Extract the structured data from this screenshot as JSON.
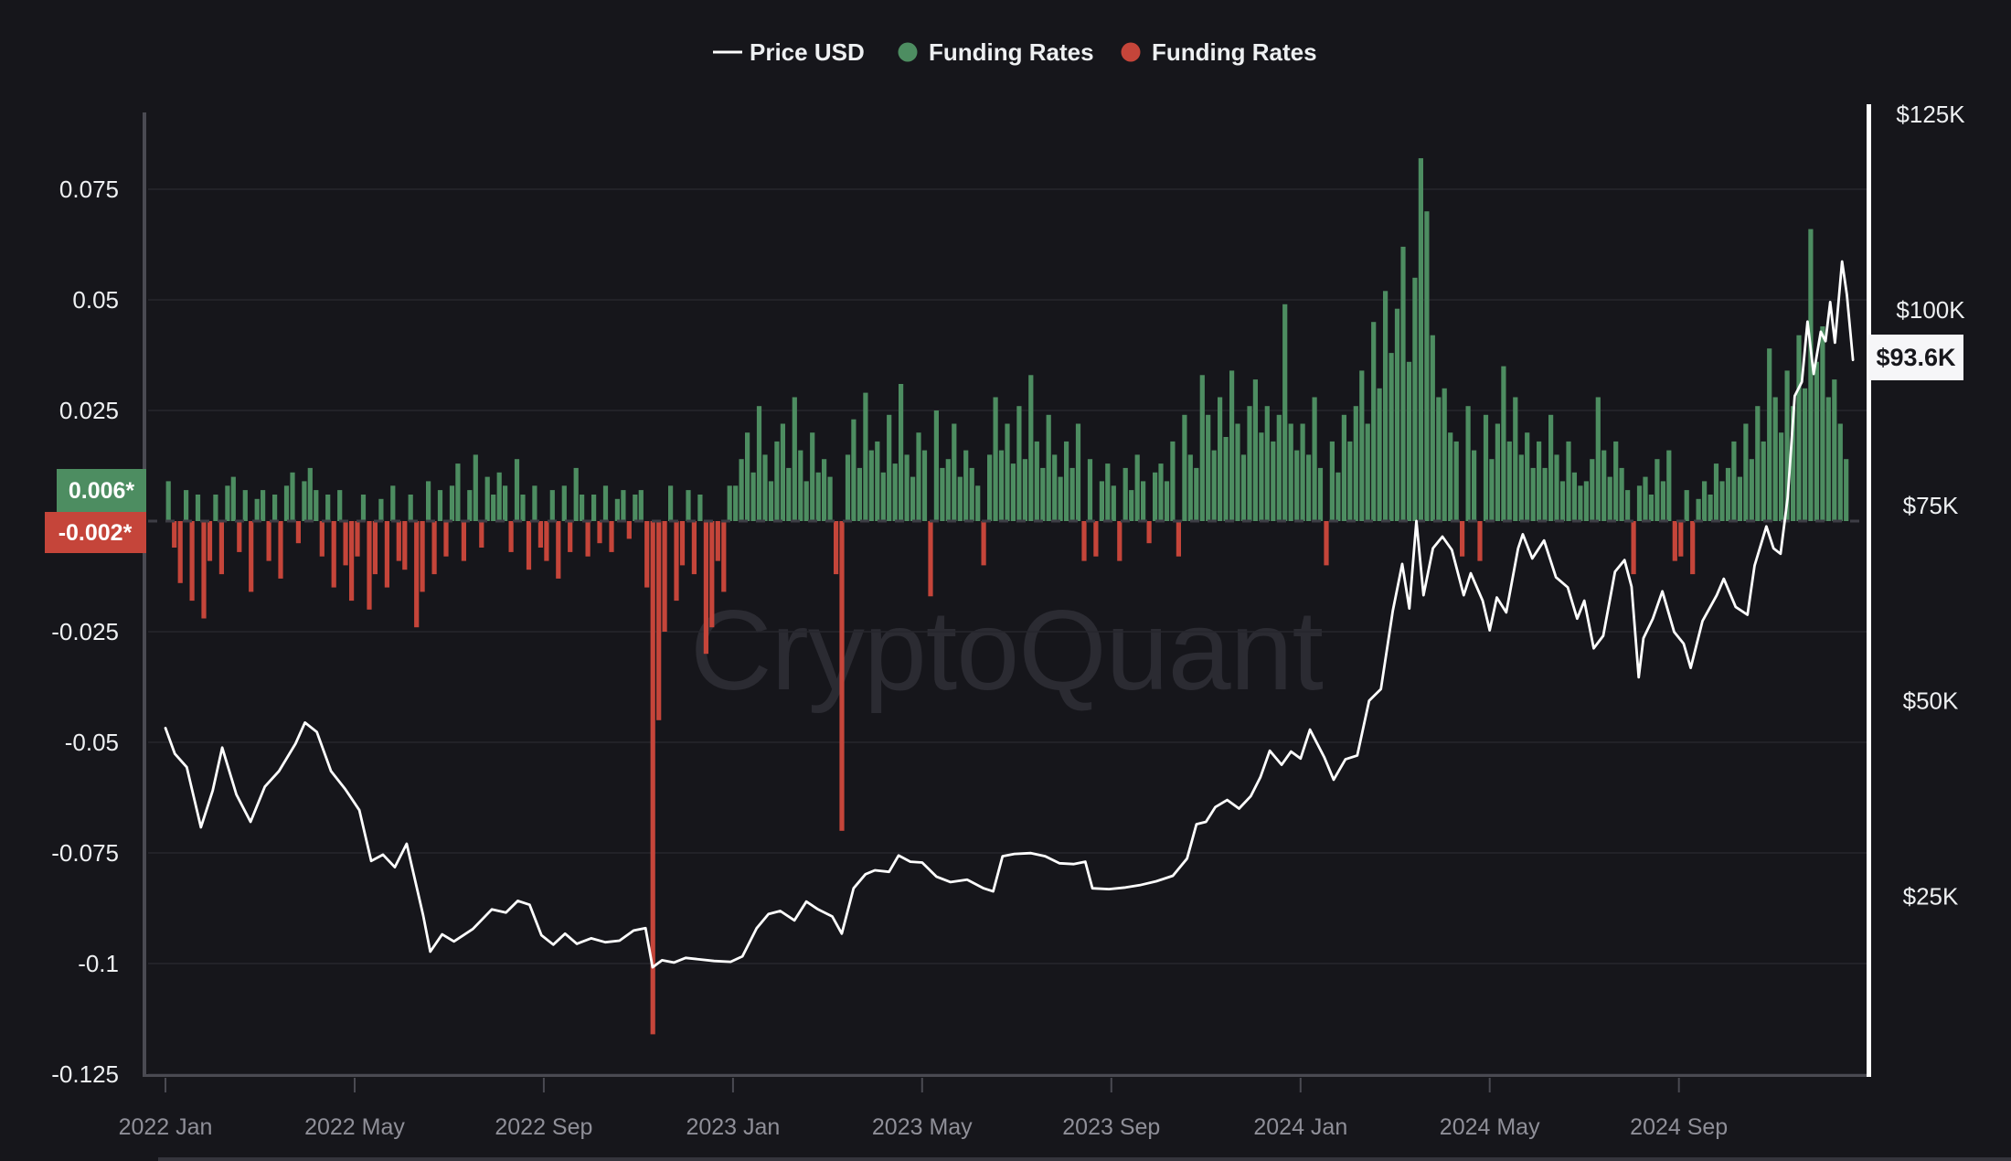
{
  "legend": {
    "items": [
      {
        "label": "Price USD",
        "marker": "line",
        "color": "#ffffff"
      },
      {
        "label": "Funding Rates",
        "marker": "dot",
        "color": "#4d8d61"
      },
      {
        "label": "Funding Rates",
        "marker": "dot",
        "color": "#c5453a"
      }
    ]
  },
  "watermark": "CryptoQuant",
  "badges": {
    "funding_green": "0.006*",
    "funding_red": "-0.002*",
    "price_current": "$93.6K"
  },
  "colors": {
    "bg": "#16161b",
    "grid": "#26262c",
    "axisGray": "#4a4a52",
    "tickLabel": "#8f8f98",
    "axisLabel": "#eef0f2",
    "green": "#4d8d61",
    "red": "#c5453a",
    "priceLine": "#ffffff",
    "watermark": "#2b2b32",
    "priceBadgeBg": "#f6f6f8",
    "priceBadgeText": "#17171c",
    "zeroDash": "#3d3d45",
    "bottomStrip": "#35353d"
  },
  "axes": {
    "left": {
      "ticks": [
        {
          "v": 0.075,
          "label": "0.075"
        },
        {
          "v": 0.05,
          "label": "0.05"
        },
        {
          "v": 0.025,
          "label": "0.025"
        },
        {
          "v": -0.025,
          "label": "-0.025"
        },
        {
          "v": -0.05,
          "label": "-0.05"
        },
        {
          "v": -0.075,
          "label": "-0.075"
        },
        {
          "v": -0.1,
          "label": "-0.1"
        },
        {
          "v": -0.125,
          "label": "-0.125"
        }
      ]
    },
    "right": {
      "ticks": [
        {
          "v": 125,
          "label": "$125K"
        },
        {
          "v": 100,
          "label": "$100K"
        },
        {
          "v": 75,
          "label": "$75K"
        },
        {
          "v": 50,
          "label": "$50K"
        },
        {
          "v": 25,
          "label": "$25K"
        }
      ]
    },
    "x": {
      "ticks": [
        {
          "m": 0,
          "label": "2022 Jan"
        },
        {
          "m": 4,
          "label": "2022 May"
        },
        {
          "m": 8,
          "label": "2022 Sep"
        },
        {
          "m": 12,
          "label": "2023 Jan"
        },
        {
          "m": 16,
          "label": "2023 May"
        },
        {
          "m": 20,
          "label": "2023 Sep"
        },
        {
          "m": 24,
          "label": "2024 Jan"
        },
        {
          "m": 28,
          "label": "2024 May"
        },
        {
          "m": 32,
          "label": "2024 Sep"
        }
      ]
    }
  },
  "chart_data": {
    "type": [
      "line",
      "bar"
    ],
    "x_range_months": [
      "2022-01",
      "2024-12"
    ],
    "left_ylim": [
      -0.125,
      0.092
    ],
    "right_ylim_usd_k": [
      0,
      125
    ],
    "grid": "horizontal",
    "legend_position": "top-center",
    "last_values": {
      "price_usd_k": 93.6,
      "funding_green": 0.006,
      "funding_red": -0.002
    },
    "series": [
      {
        "name": "Price USD",
        "type": "line",
        "axis": "right",
        "unit": "USD thousands",
        "points_month_price_k": [
          [
            0,
            46.5
          ],
          [
            0.2,
            43.2
          ],
          [
            0.45,
            41.5
          ],
          [
            0.75,
            33.8
          ],
          [
            1.0,
            38.5
          ],
          [
            1.2,
            44.0
          ],
          [
            1.5,
            38.0
          ],
          [
            1.8,
            34.5
          ],
          [
            2.1,
            39.0
          ],
          [
            2.4,
            41.0
          ],
          [
            2.75,
            44.5
          ],
          [
            2.95,
            47.2
          ],
          [
            3.2,
            46.0
          ],
          [
            3.5,
            41.0
          ],
          [
            3.8,
            38.7
          ],
          [
            4.1,
            36.0
          ],
          [
            4.35,
            29.5
          ],
          [
            4.6,
            30.3
          ],
          [
            4.85,
            28.7
          ],
          [
            5.1,
            31.7
          ],
          [
            5.45,
            22.5
          ],
          [
            5.6,
            17.9
          ],
          [
            5.85,
            20.1
          ],
          [
            6.1,
            19.2
          ],
          [
            6.5,
            20.8
          ],
          [
            6.9,
            23.3
          ],
          [
            7.2,
            22.9
          ],
          [
            7.45,
            24.4
          ],
          [
            7.7,
            23.9
          ],
          [
            7.95,
            20.0
          ],
          [
            8.2,
            18.8
          ],
          [
            8.45,
            20.2
          ],
          [
            8.7,
            18.9
          ],
          [
            9.0,
            19.6
          ],
          [
            9.3,
            19.1
          ],
          [
            9.6,
            19.3
          ],
          [
            9.9,
            20.6
          ],
          [
            10.15,
            20.9
          ],
          [
            10.3,
            15.9
          ],
          [
            10.5,
            16.8
          ],
          [
            10.75,
            16.5
          ],
          [
            11.0,
            17.1
          ],
          [
            11.3,
            16.9
          ],
          [
            11.6,
            16.7
          ],
          [
            11.95,
            16.6
          ],
          [
            12.2,
            17.3
          ],
          [
            12.5,
            20.9
          ],
          [
            12.75,
            22.7
          ],
          [
            13.0,
            23.1
          ],
          [
            13.3,
            21.9
          ],
          [
            13.55,
            24.3
          ],
          [
            13.8,
            23.3
          ],
          [
            14.1,
            22.4
          ],
          [
            14.3,
            20.2
          ],
          [
            14.55,
            26.0
          ],
          [
            14.8,
            27.8
          ],
          [
            15.0,
            28.3
          ],
          [
            15.3,
            28.1
          ],
          [
            15.5,
            30.2
          ],
          [
            15.75,
            29.4
          ],
          [
            16.0,
            29.3
          ],
          [
            16.3,
            27.5
          ],
          [
            16.6,
            26.8
          ],
          [
            16.95,
            27.1
          ],
          [
            17.3,
            26.0
          ],
          [
            17.5,
            25.6
          ],
          [
            17.7,
            30.1
          ],
          [
            17.95,
            30.4
          ],
          [
            18.3,
            30.5
          ],
          [
            18.6,
            30.1
          ],
          [
            18.9,
            29.2
          ],
          [
            19.2,
            29.1
          ],
          [
            19.45,
            29.4
          ],
          [
            19.6,
            26.0
          ],
          [
            19.95,
            25.9
          ],
          [
            20.3,
            26.1
          ],
          [
            20.6,
            26.4
          ],
          [
            20.95,
            26.9
          ],
          [
            21.3,
            27.6
          ],
          [
            21.6,
            29.8
          ],
          [
            21.8,
            34.2
          ],
          [
            22.0,
            34.5
          ],
          [
            22.2,
            36.4
          ],
          [
            22.45,
            37.3
          ],
          [
            22.7,
            36.2
          ],
          [
            22.95,
            37.8
          ],
          [
            23.15,
            40.2
          ],
          [
            23.35,
            43.6
          ],
          [
            23.6,
            41.8
          ],
          [
            23.8,
            43.5
          ],
          [
            24.0,
            42.6
          ],
          [
            24.2,
            46.3
          ],
          [
            24.5,
            42.8
          ],
          [
            24.7,
            39.9
          ],
          [
            24.95,
            42.5
          ],
          [
            25.2,
            43.0
          ],
          [
            25.45,
            50.0
          ],
          [
            25.7,
            51.5
          ],
          [
            25.95,
            61.5
          ],
          [
            26.15,
            67.5
          ],
          [
            26.3,
            61.8
          ],
          [
            26.45,
            73.0
          ],
          [
            26.6,
            63.5
          ],
          [
            26.8,
            69.5
          ],
          [
            27.0,
            71.0
          ],
          [
            27.2,
            69.3
          ],
          [
            27.45,
            63.5
          ],
          [
            27.6,
            66.3
          ],
          [
            27.85,
            62.8
          ],
          [
            28.0,
            59.0
          ],
          [
            28.15,
            63.2
          ],
          [
            28.35,
            61.3
          ],
          [
            28.6,
            69.5
          ],
          [
            28.7,
            71.3
          ],
          [
            28.9,
            68.2
          ],
          [
            29.15,
            70.5
          ],
          [
            29.4,
            65.8
          ],
          [
            29.65,
            64.5
          ],
          [
            29.85,
            60.5
          ],
          [
            30.0,
            62.8
          ],
          [
            30.2,
            56.7
          ],
          [
            30.4,
            58.3
          ],
          [
            30.65,
            66.5
          ],
          [
            30.85,
            68.0
          ],
          [
            31.0,
            64.6
          ],
          [
            31.15,
            53.0
          ],
          [
            31.25,
            58.0
          ],
          [
            31.45,
            60.5
          ],
          [
            31.65,
            64.0
          ],
          [
            31.9,
            58.8
          ],
          [
            32.1,
            57.3
          ],
          [
            32.25,
            54.2
          ],
          [
            32.5,
            60.2
          ],
          [
            32.8,
            63.5
          ],
          [
            32.95,
            65.6
          ],
          [
            33.2,
            62.0
          ],
          [
            33.45,
            61.0
          ],
          [
            33.6,
            67.3
          ],
          [
            33.85,
            72.3
          ],
          [
            34.0,
            69.5
          ],
          [
            34.15,
            68.8
          ],
          [
            34.3,
            76.0
          ],
          [
            34.45,
            89.0
          ],
          [
            34.6,
            90.8
          ],
          [
            34.72,
            98.5
          ],
          [
            34.85,
            91.8
          ],
          [
            35.0,
            97.2
          ],
          [
            35.1,
            96.0
          ],
          [
            35.2,
            101.0
          ],
          [
            35.3,
            95.8
          ],
          [
            35.45,
            106.2
          ],
          [
            35.55,
            102.0
          ],
          [
            35.62,
            97.5
          ],
          [
            35.68,
            93.6
          ]
        ]
      },
      {
        "name": "Funding Rates",
        "type": "bar",
        "axis": "left",
        "values_scale": 0.01,
        "start_month": 0,
        "months_per_bar": 0.125,
        "values": [
          0.9,
          -0.6,
          -1.4,
          0.7,
          -1.8,
          0.6,
          -2.2,
          -0.9,
          0.6,
          -1.2,
          0.8,
          1.0,
          -0.7,
          0.7,
          -1.6,
          0.5,
          0.7,
          -0.9,
          0.6,
          -1.3,
          0.8,
          1.1,
          -0.5,
          0.9,
          1.2,
          0.7,
          -0.8,
          0.6,
          -1.5,
          0.7,
          -1.0,
          -1.8,
          -0.8,
          0.6,
          -2.0,
          -1.2,
          0.5,
          -1.5,
          0.8,
          -0.9,
          -1.1,
          0.6,
          -2.4,
          -1.6,
          0.9,
          -1.2,
          0.7,
          -0.8,
          0.8,
          1.3,
          -0.9,
          0.7,
          1.5,
          -0.6,
          1.0,
          0.6,
          1.1,
          0.8,
          -0.7,
          1.4,
          0.6,
          -1.1,
          0.8,
          -0.6,
          -0.9,
          0.7,
          -1.3,
          0.8,
          -0.7,
          1.2,
          0.6,
          -0.8,
          0.6,
          -0.5,
          0.8,
          -0.7,
          0.5,
          0.7,
          -0.4,
          0.6,
          0.7,
          -1.5,
          -11.6,
          -4.5,
          -2.5,
          0.8,
          -1.8,
          -1.0,
          0.7,
          -1.2,
          0.6,
          -3.0,
          -2.4,
          -0.9,
          -1.6,
          0.8,
          0.8,
          1.4,
          2.0,
          1.1,
          2.6,
          1.5,
          0.9,
          1.8,
          2.2,
          1.2,
          2.8,
          1.6,
          0.9,
          2.0,
          1.1,
          1.4,
          1.0,
          -1.2,
          -7.0,
          1.5,
          2.3,
          1.2,
          2.9,
          1.6,
          1.8,
          1.1,
          2.4,
          1.3,
          3.1,
          1.5,
          1.0,
          2.0,
          1.6,
          -1.7,
          2.5,
          1.2,
          1.4,
          2.2,
          1.0,
          1.6,
          1.2,
          0.8,
          -1.0,
          1.5,
          2.8,
          1.6,
          2.2,
          1.3,
          2.6,
          1.4,
          3.3,
          1.8,
          1.2,
          2.4,
          1.5,
          1.0,
          1.8,
          1.2,
          2.2,
          -0.9,
          1.4,
          -0.8,
          0.9,
          1.3,
          0.8,
          -0.9,
          1.2,
          0.7,
          1.5,
          0.9,
          -0.5,
          1.1,
          1.3,
          0.9,
          1.8,
          -0.8,
          2.4,
          1.5,
          1.2,
          3.3,
          2.4,
          1.6,
          2.8,
          1.9,
          3.4,
          2.2,
          1.5,
          2.6,
          3.2,
          2.0,
          2.6,
          1.8,
          2.4,
          4.9,
          2.2,
          1.6,
          2.2,
          1.5,
          2.8,
          1.2,
          -1.0,
          1.8,
          1.1,
          2.4,
          1.8,
          2.6,
          3.4,
          2.2,
          4.5,
          3.0,
          5.2,
          3.8,
          4.8,
          6.2,
          3.6,
          5.5,
          8.2,
          7.0,
          4.2,
          2.8,
          3.0,
          2.0,
          1.8,
          -0.8,
          2.6,
          1.6,
          -0.9,
          2.4,
          1.4,
          2.2,
          3.5,
          1.8,
          2.8,
          1.5,
          2.0,
          1.2,
          1.8,
          1.2,
          2.4,
          1.5,
          0.9,
          1.8,
          1.1,
          0.8,
          0.9,
          1.4,
          2.8,
          1.6,
          1.0,
          1.8,
          1.2,
          0.7,
          -1.2,
          0.8,
          1.0,
          0.6,
          1.4,
          0.9,
          1.6,
          -0.9,
          -0.8,
          0.7,
          -1.2,
          0.5,
          0.9,
          0.6,
          1.3,
          0.9,
          1.2,
          1.8,
          1.0,
          2.2,
          1.4,
          2.6,
          1.8,
          3.9,
          2.8,
          2.0,
          3.4,
          2.6,
          4.2,
          3.0,
          6.6,
          3.6,
          4.4,
          2.8,
          3.2,
          2.2,
          1.4
        ]
      }
    ]
  }
}
